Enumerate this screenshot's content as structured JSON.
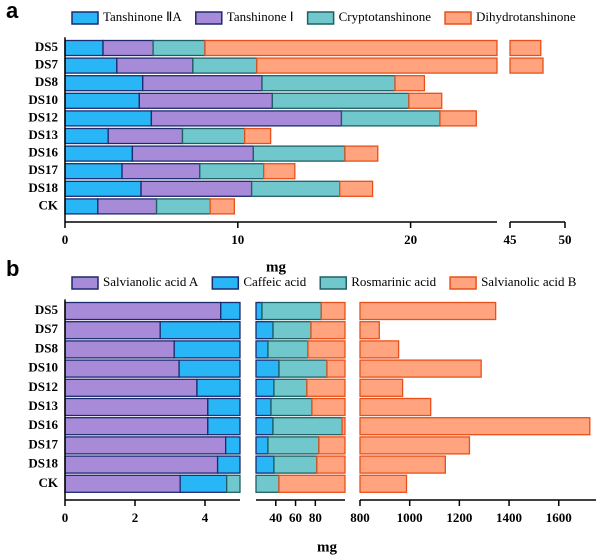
{
  "chart_data": [
    {
      "type": "bar",
      "orientation": "horizontal",
      "stacked": true,
      "panel_label": "a",
      "xlabel": "mg",
      "categories": [
        "DS5",
        "DS7",
        "DS8",
        "DS10",
        "DS12",
        "DS13",
        "DS16",
        "DS17",
        "DS18",
        "CK"
      ],
      "series": [
        {
          "name": "Tanshinone ⅡA",
          "color": "#29b6f6",
          "edgecolor": "#1c2a6e",
          "values": [
            2.2,
            3.0,
            4.5,
            4.3,
            5.0,
            2.5,
            3.9,
            3.3,
            4.4,
            1.9
          ]
        },
        {
          "name": "Tanshinone Ⅰ",
          "color": "#a78bd8",
          "edgecolor": "#1c2a6e",
          "values": [
            2.9,
            4.4,
            6.9,
            7.7,
            11.0,
            4.3,
            7.0,
            4.5,
            6.4,
            3.4
          ]
        },
        {
          "name": "Cryptotanshinone",
          "color": "#70c8cc",
          "edgecolor": "#1f5f63",
          "values": [
            3.0,
            3.7,
            7.7,
            7.9,
            5.7,
            3.6,
            5.3,
            3.7,
            5.1,
            3.1
          ]
        },
        {
          "name": "Dihydrotanshinone",
          "color": "#ffa47e",
          "edgecolor": "#e8501a",
          "values": [
            39.7,
            36.9,
            1.7,
            1.9,
            2.1,
            1.5,
            1.9,
            1.8,
            1.9,
            1.4
          ]
        }
      ],
      "xlim": [
        0,
        50
      ],
      "xbreaks": [
        [
          25,
          45
        ]
      ],
      "xticks": [
        0,
        10,
        20,
        45,
        50
      ]
    },
    {
      "type": "bar",
      "orientation": "horizontal",
      "stacked": true,
      "panel_label": "b",
      "xlabel": "mg",
      "categories": [
        "DS5",
        "DS7",
        "DS8",
        "DS10",
        "DS12",
        "DS13",
        "DS16",
        "DS17",
        "DS18",
        "CK"
      ],
      "series": [
        {
          "name": "Salvianolic acid A",
          "color": "#a78bd8",
          "edgecolor": "#1c2a6e",
          "values": [
            4.45,
            2.72,
            3.12,
            3.26,
            3.77,
            4.08,
            4.08,
            4.59,
            4.36,
            3.29
          ]
        },
        {
          "name": "Caffeic acid",
          "color": "#29b6f6",
          "edgecolor": "#1c2a6e",
          "values": [
            21.6,
            34.5,
            29,
            40,
            34.4,
            31.1,
            33.1,
            27.5,
            33.8,
            1.33
          ]
        },
        {
          "name": "Rosmarinic acid",
          "color": "#70c8cc",
          "edgecolor": "#1f5f63",
          "values": [
            60,
            38.4,
            40.4,
            48.5,
            33.3,
            41.4,
            69.9,
            51.5,
            43.4,
            38.6
          ]
        },
        {
          "name": "Salvianolic acid B",
          "color": "#ffa47e",
          "edgecolor": "#e8501a",
          "values": [
            1260,
            802,
            883,
            1196,
            900,
            1008,
            1618,
            1157,
            1062,
            944
          ]
        }
      ],
      "xlim": [
        0,
        1750
      ],
      "xbreaks": [
        [
          5,
          20
        ],
        [
          110,
          800
        ]
      ],
      "xticks": [
        0,
        2,
        4,
        40,
        60,
        80,
        800,
        1000,
        1200,
        1400,
        1600
      ]
    }
  ]
}
